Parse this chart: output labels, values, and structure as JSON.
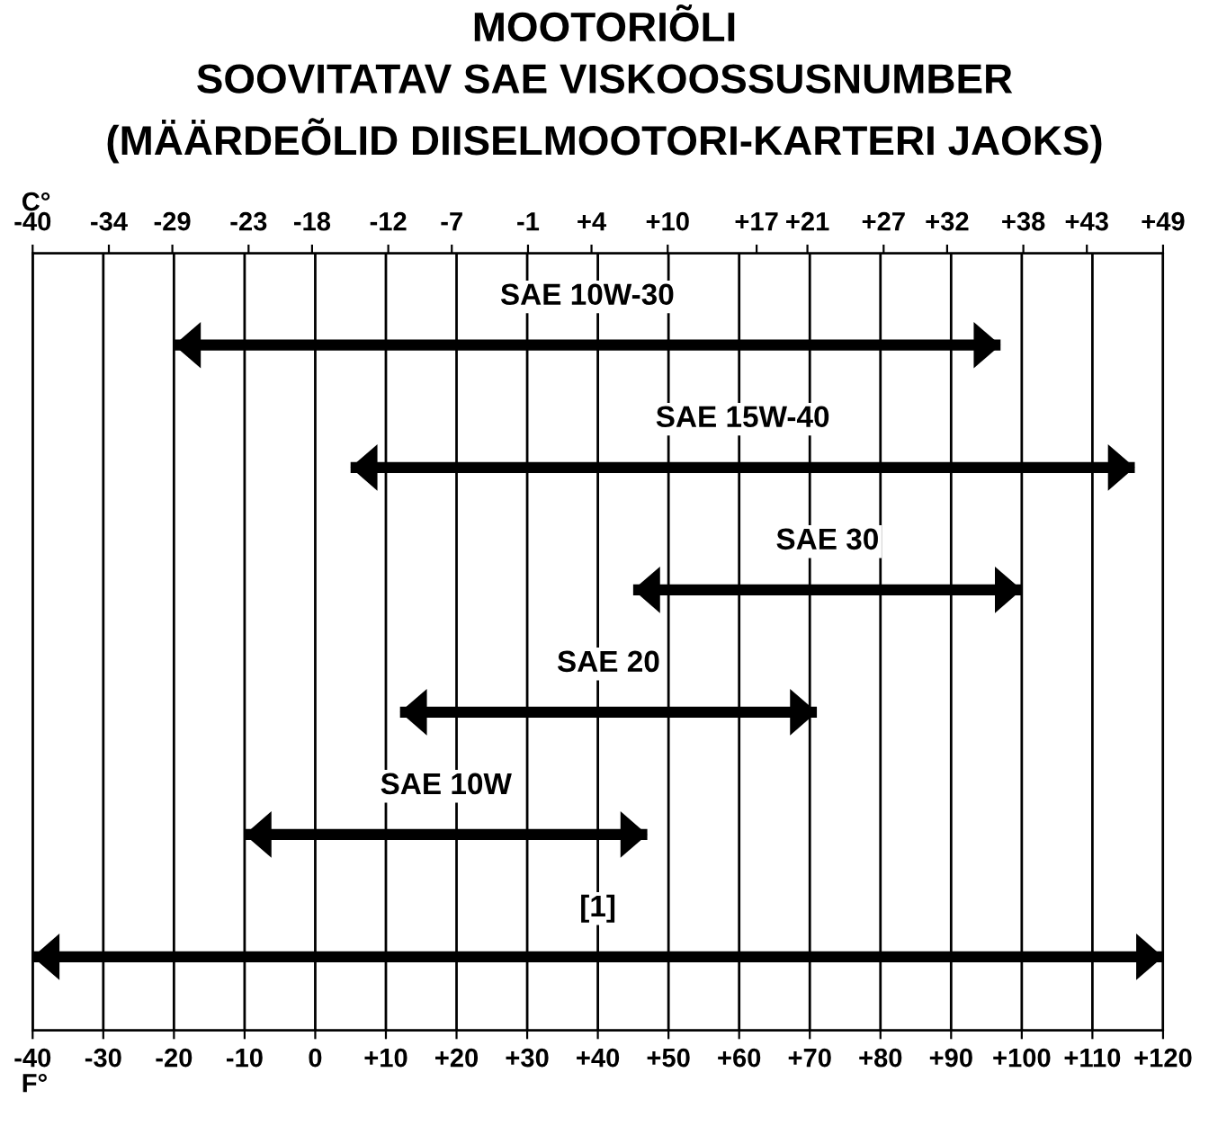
{
  "chart_data": {
    "type": "bar",
    "orientation": "horizontal",
    "title": "MOOTORIÕLI\nSOOVITATAV SAE VISKOOSSUSNUMBER\n(MÄÄRDEÕLID DIISELMOOTORI-KARTERI JAOKS)",
    "xlabel": "F°",
    "x2label": "C°",
    "categories": [
      "SAE 10W-30",
      "SAE 15W-40",
      "SAE 30",
      "SAE 20",
      "SAE 10W",
      "[1]"
    ],
    "base": [
      -20,
      5,
      45,
      12,
      -10,
      -40
    ],
    "values": [
      117,
      111,
      55,
      59,
      57,
      160
    ],
    "color": "#000000",
    "xlim": [
      -40,
      120
    ],
    "xticks": [
      -40,
      -30,
      -20,
      -10,
      0,
      {
        "value": 10,
        "label": "+10"
      },
      {
        "value": 20,
        "label": "+20"
      },
      {
        "value": 30,
        "label": "+30"
      },
      {
        "value": 40,
        "label": "+40"
      },
      {
        "value": 50,
        "label": "+50"
      },
      {
        "value": 60,
        "label": "+60"
      },
      {
        "value": 70,
        "label": "+70"
      },
      {
        "value": 80,
        "label": "+80"
      },
      {
        "value": 90,
        "label": "+90"
      },
      {
        "value": 100,
        "label": "+100"
      },
      {
        "value": 110,
        "label": "+110"
      },
      {
        "value": 120,
        "label": "+120"
      }
    ],
    "x2lim": [
      -40,
      49
    ],
    "x2ticks": [
      -40,
      -34,
      -29,
      -23,
      -18,
      -12,
      -7,
      -1,
      {
        "value": 4,
        "label": "+4"
      },
      {
        "value": 10,
        "label": "+10"
      },
      {
        "value": 17,
        "label": "+17"
      },
      {
        "value": 21,
        "label": "+21"
      },
      {
        "value": 27,
        "label": "+27"
      },
      {
        "value": 32,
        "label": "+32"
      },
      {
        "value": 38,
        "label": "+38"
      },
      {
        "value": 43,
        "label": "+43"
      },
      {
        "value": 49,
        "label": "+49"
      }
    ],
    "grid": "x",
    "tick_labels": "x"
  }
}
